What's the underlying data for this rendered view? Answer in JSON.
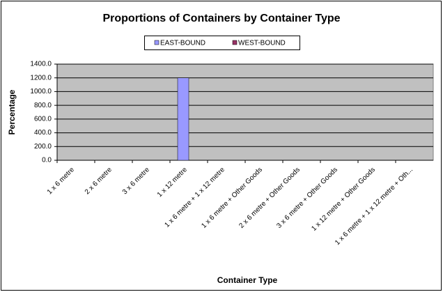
{
  "chart_data": {
    "type": "bar",
    "title": "Proportions of Containers by Container Type",
    "x_label": "Container Type",
    "y_label": "Percentage",
    "categories": [
      "1 x 6 metre",
      "2 x 6 metre",
      "3 x 6 metre",
      "1 x 12 metre",
      "1 x 6 metre + 1 x 12 metre",
      "1 x 6 metre + Other Goods",
      "2 x 6 metre + Other Goods",
      "3 x 6 metre + Other Goods",
      "1 x 12 metre + Other Goods",
      "1 x 6 metre + 1 x 12 metre + Oth..."
    ],
    "series": [
      {
        "name": "EAST-BOUND",
        "color": "#9999ff",
        "values": [
          0,
          0,
          0,
          1200,
          0,
          0,
          0,
          0,
          0,
          0
        ]
      },
      {
        "name": "WEST-BOUND",
        "color": "#993366",
        "values": [
          0,
          0,
          0,
          0,
          0,
          0,
          0,
          0,
          0,
          0
        ]
      }
    ],
    "ylim": [
      0,
      1400
    ],
    "yticks": [
      {
        "value": 0,
        "label": "0.0"
      },
      {
        "value": 200,
        "label": "200.0"
      },
      {
        "value": 400,
        "label": "400.0"
      },
      {
        "value": 600,
        "label": "600.0"
      },
      {
        "value": 800,
        "label": "800.0"
      },
      {
        "value": 1000,
        "label": "1000.0"
      },
      {
        "value": 1200,
        "label": "1200.0"
      },
      {
        "value": 1400,
        "label": "1400.0"
      }
    ],
    "grid": true,
    "legend": "top"
  }
}
